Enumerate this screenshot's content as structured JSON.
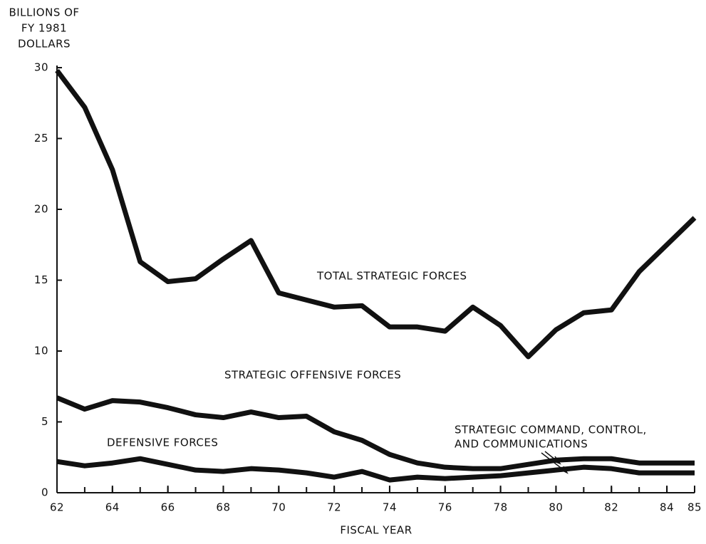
{
  "chart_data": {
    "type": "line",
    "y_label": [
      "BILLIONS OF",
      "FY 1981",
      "DOLLARS"
    ],
    "x_label": "FISCAL YEAR",
    "x": [
      62,
      63,
      64,
      65,
      66,
      67,
      68,
      69,
      70,
      71,
      72,
      73,
      74,
      75,
      76,
      77,
      78,
      79,
      80,
      81,
      82,
      83,
      84,
      85
    ],
    "xlim": [
      62,
      85
    ],
    "xticks": [
      62,
      64,
      66,
      68,
      70,
      72,
      74,
      76,
      78,
      80,
      82,
      84,
      85
    ],
    "ylim": [
      0,
      30
    ],
    "yticks": [
      0,
      5,
      10,
      15,
      20,
      25,
      30
    ],
    "series": [
      {
        "color": "#111111",
        "values": [
          29.8,
          27.2,
          22.8,
          16.3,
          14.9,
          15.1,
          16.5,
          17.8,
          14.1,
          13.6,
          13.1,
          13.2,
          11.7,
          11.7,
          11.4,
          13.1,
          11.8,
          9.6,
          11.5,
          12.7,
          12.9,
          15.6,
          17.5,
          19.4
        ]
      },
      {
        "color": "#111111",
        "values": [
          6.7,
          5.9,
          6.5,
          6.4,
          6.0,
          5.5,
          5.3,
          5.7,
          5.3,
          5.4,
          4.3,
          3.7,
          2.7,
          2.1,
          1.8,
          1.7,
          1.7,
          2.0,
          2.3,
          2.4,
          2.4,
          2.1,
          2.1,
          2.1
        ]
      },
      {
        "color": "#111111",
        "values": [
          2.2,
          1.9,
          2.1,
          2.4,
          2.0,
          1.6,
          1.5,
          1.7,
          1.6,
          1.4,
          1.1,
          1.5,
          0.9,
          1.1,
          1.0,
          1.1,
          1.2,
          1.4,
          1.6,
          1.8,
          1.7,
          1.4,
          1.4,
          1.4
        ]
      }
    ],
    "annotations": [
      {
        "text": [
          "TOTAL STRATEGIC FORCES"
        ]
      },
      {
        "text": [
          "STRATEGIC OFFENSIVE FORCES"
        ]
      },
      {
        "text": [
          "DEFENSIVE FORCES"
        ]
      },
      {
        "text": [
          "STRATEGIC COMMAND, CONTROL,",
          "AND COMMUNICATIONS"
        ]
      }
    ]
  }
}
